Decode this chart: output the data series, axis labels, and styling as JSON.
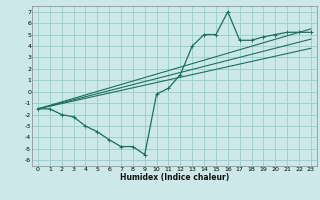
{
  "xlabel": "Humidex (Indice chaleur)",
  "xlim": [
    -0.5,
    23.5
  ],
  "ylim": [
    -6.5,
    7.5
  ],
  "xticks": [
    0,
    1,
    2,
    3,
    4,
    5,
    6,
    7,
    8,
    9,
    10,
    11,
    12,
    13,
    14,
    15,
    16,
    17,
    18,
    19,
    20,
    21,
    22,
    23
  ],
  "yticks": [
    -6,
    -5,
    -4,
    -3,
    -2,
    -1,
    0,
    1,
    2,
    3,
    4,
    5,
    6,
    7
  ],
  "bg_color": "#cce8e8",
  "grid_color": "#99cccc",
  "line_color": "#1a7060",
  "line1_x": [
    0,
    1,
    2,
    3,
    4,
    5,
    6,
    7,
    8,
    9,
    10,
    11,
    12,
    13,
    14,
    15,
    16,
    17,
    18,
    19,
    20,
    21,
    22,
    23
  ],
  "line1_y": [
    -1.5,
    -1.5,
    -2.0,
    -2.2,
    -3.0,
    -3.5,
    -4.2,
    -4.8,
    -4.8,
    -5.5,
    -0.2,
    0.3,
    1.5,
    4.0,
    5.0,
    5.0,
    7.0,
    4.5,
    4.5,
    4.8,
    5.0,
    5.2,
    5.2,
    5.2
  ],
  "line2_x": [
    0,
    23
  ],
  "line2_y": [
    -1.5,
    5.5
  ],
  "line3_x": [
    0,
    23
  ],
  "line3_y": [
    -1.5,
    3.8
  ],
  "line4_x": [
    0,
    23
  ],
  "line4_y": [
    -1.5,
    4.6
  ]
}
